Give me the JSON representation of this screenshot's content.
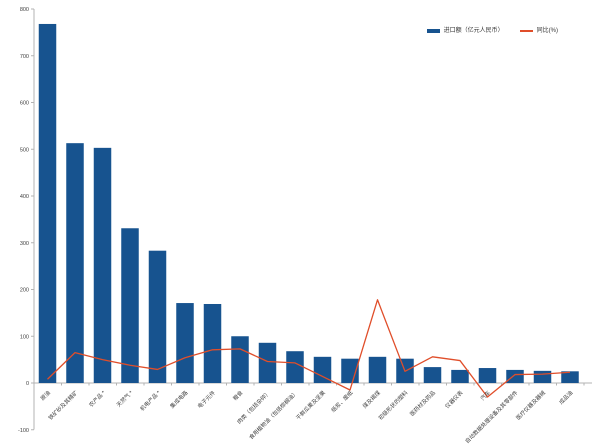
{
  "legend": {
    "bar_label": "进口额（亿元人民币）",
    "line_label": "同比(%)"
  },
  "chart_data": {
    "type": "bar",
    "title": "",
    "xlabel": "",
    "ylabel": "",
    "grid": false,
    "legend_position": "top-right",
    "y_axis": {
      "min": -100,
      "max": 800,
      "step": 100,
      "ticks": [
        800,
        700,
        600,
        500,
        400,
        300,
        200,
        100,
        0,
        -100
      ]
    },
    "categories": [
      "原油",
      "铁矿砂及其精矿",
      "农产品 *",
      "天然气 *",
      "机电产品 *",
      "集成电路",
      "电子元件",
      "粮食",
      "肉类（包括杂碎）",
      "食用植物油（包括棕榈油）",
      "干鲜瓜果及坚果",
      "纸浆、废纸",
      "煤及褐煤",
      "初级形状的塑料",
      "医药材及药品",
      "仪器仪表",
      "汽车",
      "自动数据处理设备及其零部件",
      "医疗仪器及器械",
      "成品油"
    ],
    "series": [
      {
        "name": "进口额（亿元人民币）",
        "type": "bar",
        "color": "#17538F",
        "values": [
          768,
          513,
          503,
          331,
          283,
          171,
          169,
          100,
          86,
          68,
          56,
          52,
          56,
          52,
          34,
          28,
          32,
          28,
          26,
          25
        ]
      },
      {
        "name": "同比(%)",
        "type": "line",
        "color": "#E04E2A",
        "values": [
          8,
          65,
          50,
          38,
          29,
          54,
          71,
          73,
          46,
          43,
          14,
          -15,
          178,
          25,
          56,
          48,
          -30,
          18,
          19,
          23
        ]
      }
    ],
    "axis_color": "#b3b3b3",
    "tick_label_color": "#404040"
  }
}
